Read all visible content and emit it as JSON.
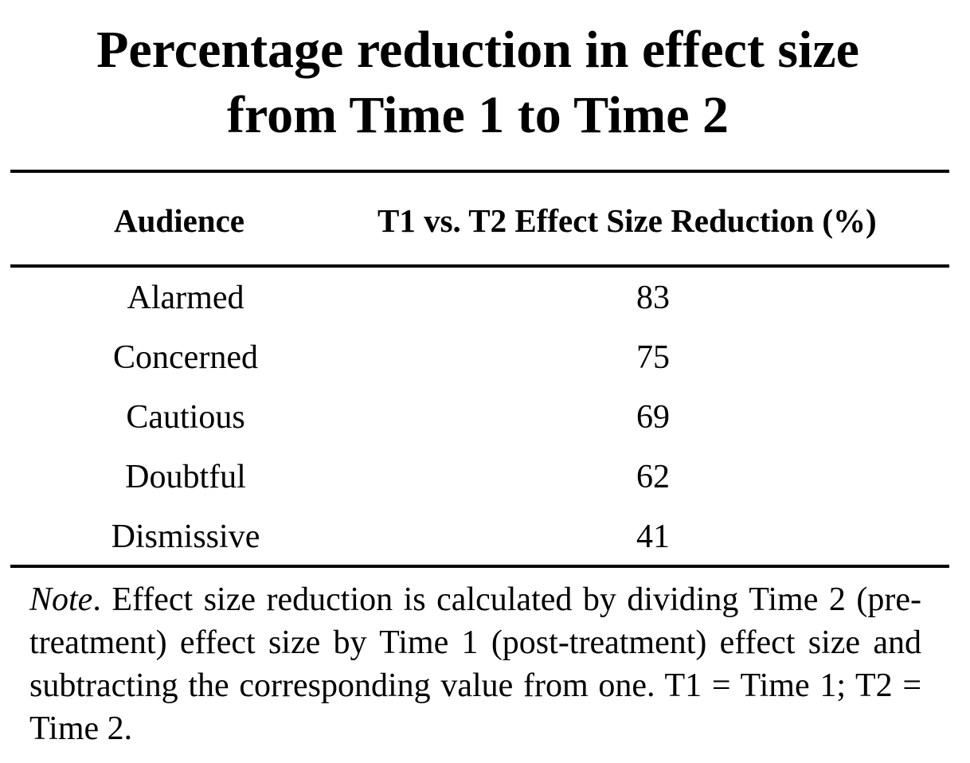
{
  "title": {
    "line1": "Percentage reduction in effect size",
    "line2": "from Time 1 to Time 2"
  },
  "table": {
    "headers": {
      "audience": "Audience",
      "reduction": "T1 vs. T2 Effect Size Reduction (%)"
    },
    "rows": [
      {
        "audience": "Alarmed",
        "reduction": "83"
      },
      {
        "audience": "Concerned",
        "reduction": "75"
      },
      {
        "audience": "Cautious",
        "reduction": "69"
      },
      {
        "audience": "Doubtful",
        "reduction": "62"
      },
      {
        "audience": "Dismissive",
        "reduction": "41"
      }
    ]
  },
  "note": {
    "label": "Note",
    "text": ". Effect size reduction is calculated by dividing Time 2 (pre-treatment) effect size by Time 1 (post-treatment) effect size and subtracting the corresponding value from one. T1 = Time 1; T2 = Time 2."
  }
}
